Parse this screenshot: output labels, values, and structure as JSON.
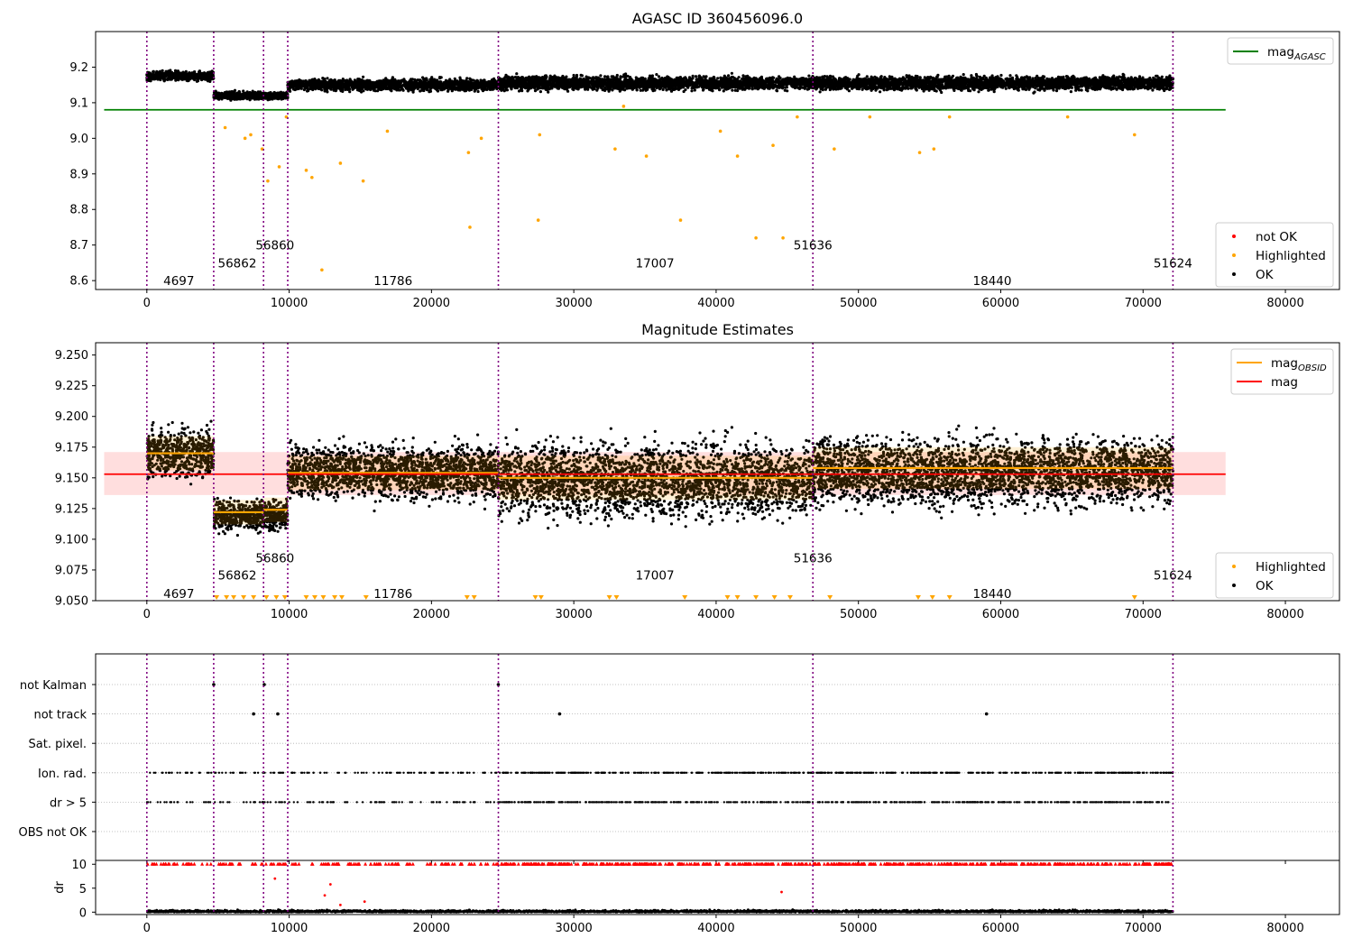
{
  "chart_data": [
    {
      "type": "scatter",
      "title": "AGASC ID 360456096.0",
      "xlabel": "",
      "ylabel": "",
      "xlim": [
        -3600,
        83800
      ],
      "ylim": [
        8.575,
        9.3
      ],
      "xticks": [
        0,
        10000,
        20000,
        30000,
        40000,
        50000,
        60000,
        70000,
        80000
      ],
      "yticks": [
        8.6,
        8.7,
        8.8,
        8.9,
        9.0,
        9.1,
        9.2
      ],
      "ytick_labels": [
        "8.6",
        "8.7",
        "8.8",
        "8.9",
        "9.0",
        "9.1",
        "9.2"
      ],
      "obs_boundaries": [
        0,
        4697,
        8200,
        9900,
        24700,
        46800,
        72100
      ],
      "obs_labels": [
        {
          "text": "4697",
          "x": 2250,
          "y": 8.6
        },
        {
          "text": "56862",
          "x": 6350,
          "y": 8.65
        },
        {
          "text": "56860",
          "x": 9000,
          "y": 8.7
        },
        {
          "text": "11786",
          "x": 17300,
          "y": 8.6
        },
        {
          "text": "17007",
          "x": 35700,
          "y": 8.65
        },
        {
          "text": "51636",
          "x": 46800,
          "y": 8.7
        },
        {
          "text": "18440",
          "x": 59400,
          "y": 8.6
        },
        {
          "text": "51624",
          "x": 72100,
          "y": 8.65
        }
      ],
      "segments": [
        {
          "x0": 0,
          "x1": 4697,
          "center": 9.175,
          "spread": 0.012
        },
        {
          "x0": 4697,
          "x1": 9900,
          "center": 9.12,
          "spread": 0.01
        },
        {
          "x0": 9900,
          "x1": 24700,
          "center": 9.15,
          "spread": 0.015
        },
        {
          "x0": 24700,
          "x1": 46800,
          "center": 9.155,
          "spread": 0.018
        },
        {
          "x0": 46800,
          "x1": 72100,
          "center": 9.155,
          "spread": 0.018
        }
      ],
      "outliers": [
        {
          "x": 5500,
          "y": 9.03
        },
        {
          "x": 6900,
          "y": 9.0
        },
        {
          "x": 7300,
          "y": 9.01
        },
        {
          "x": 8100,
          "y": 8.97
        },
        {
          "x": 8500,
          "y": 8.88
        },
        {
          "x": 9300,
          "y": 8.92
        },
        {
          "x": 9800,
          "y": 9.06
        },
        {
          "x": 11200,
          "y": 8.91
        },
        {
          "x": 11600,
          "y": 8.89
        },
        {
          "x": 12300,
          "y": 8.63
        },
        {
          "x": 13600,
          "y": 8.93
        },
        {
          "x": 15200,
          "y": 8.88
        },
        {
          "x": 16900,
          "y": 9.02
        },
        {
          "x": 22600,
          "y": 8.96
        },
        {
          "x": 22700,
          "y": 8.75
        },
        {
          "x": 23500,
          "y": 9.0
        },
        {
          "x": 27500,
          "y": 8.77
        },
        {
          "x": 27600,
          "y": 9.01
        },
        {
          "x": 32900,
          "y": 8.97
        },
        {
          "x": 35100,
          "y": 8.95
        },
        {
          "x": 37500,
          "y": 8.77
        },
        {
          "x": 40300,
          "y": 9.02
        },
        {
          "x": 41500,
          "y": 8.95
        },
        {
          "x": 42800,
          "y": 8.72
        },
        {
          "x": 44000,
          "y": 8.98
        },
        {
          "x": 44700,
          "y": 8.72
        },
        {
          "x": 45700,
          "y": 9.06
        },
        {
          "x": 48300,
          "y": 8.97
        },
        {
          "x": 54300,
          "y": 8.96
        },
        {
          "x": 55300,
          "y": 8.97
        },
        {
          "x": 56400,
          "y": 9.06
        },
        {
          "x": 64700,
          "y": 9.06
        },
        {
          "x": 69400,
          "y": 9.01
        },
        {
          "x": 50800,
          "y": 9.06
        },
        {
          "x": 33500,
          "y": 9.09
        }
      ],
      "reference_lines": [
        {
          "name": "mag_AGASC",
          "y": 9.08,
          "color": "#008000",
          "x0": -3000,
          "x1": 75800
        }
      ],
      "legends": [
        {
          "placement": "top-right",
          "entries": [
            {
              "label": "mag",
              "sub": "AGASC",
              "kind": "line",
              "color": "#008000"
            }
          ]
        },
        {
          "placement": "bottom-right",
          "entries": [
            {
              "label": "not OK",
              "kind": "dot",
              "color": "#ff0000"
            },
            {
              "label": "Highlighted",
              "kind": "dot",
              "color": "#ffa500"
            },
            {
              "label": "OK",
              "kind": "dot",
              "color": "#000000"
            }
          ]
        }
      ]
    },
    {
      "type": "scatter",
      "title": "Magnitude Estimates",
      "xlabel": "",
      "ylabel": "",
      "xlim": [
        -3600,
        83800
      ],
      "ylim": [
        9.05,
        9.26
      ],
      "xticks": [
        0,
        10000,
        20000,
        30000,
        40000,
        50000,
        60000,
        70000,
        80000
      ],
      "yticks": [
        9.05,
        9.075,
        9.1,
        9.125,
        9.15,
        9.175,
        9.2,
        9.225,
        9.25
      ],
      "ytick_labels": [
        "9.050",
        "9.075",
        "9.100",
        "9.125",
        "9.150",
        "9.175",
        "9.200",
        "9.225",
        "9.250"
      ],
      "obs_boundaries": [
        0,
        4697,
        8200,
        9900,
        24700,
        46800,
        72100
      ],
      "obs_labels": [
        {
          "text": "4697",
          "x": 2250,
          "y": 9.056
        },
        {
          "text": "56862",
          "x": 6350,
          "y": 9.071
        },
        {
          "text": "56860",
          "x": 9000,
          "y": 9.085
        },
        {
          "text": "11786",
          "x": 17300,
          "y": 9.056
        },
        {
          "text": "17007",
          "x": 35700,
          "y": 9.071
        },
        {
          "text": "51636",
          "x": 46800,
          "y": 9.085
        },
        {
          "text": "18440",
          "x": 59400,
          "y": 9.056
        },
        {
          "text": "51624",
          "x": 72100,
          "y": 9.071
        }
      ],
      "mag_band": {
        "y0": 9.136,
        "y1": 9.171,
        "x0": -3000,
        "x1": 75800
      },
      "mag_line": {
        "name": "mag",
        "y": 9.153,
        "color": "#ff0000"
      },
      "obsid_mags": [
        {
          "x0": 0,
          "x1": 4697,
          "mag": 9.17,
          "center": 9.17,
          "spread": 0.018,
          "std": 0.014
        },
        {
          "x0": 4697,
          "x1": 8200,
          "mag": 9.122,
          "center": 9.12,
          "spread": 0.012,
          "std": 0.01
        },
        {
          "x0": 8200,
          "x1": 9900,
          "mag": 9.124,
          "center": 9.12,
          "spread": 0.012,
          "std": 0.01
        },
        {
          "x0": 9900,
          "x1": 24700,
          "mag": 9.154,
          "center": 9.155,
          "spread": 0.02,
          "std": 0.014
        },
        {
          "x0": 24700,
          "x1": 46800,
          "mag": 9.15,
          "center": 9.148,
          "spread": 0.028,
          "std": 0.018
        },
        {
          "x0": 46800,
          "x1": 72100,
          "mag": 9.158,
          "center": 9.155,
          "spread": 0.026,
          "std": 0.017
        }
      ],
      "low_markers": [
        4900,
        5600,
        6100,
        6800,
        7500,
        8400,
        9100,
        9700,
        11200,
        11800,
        12400,
        13200,
        13700,
        15400,
        22500,
        23000,
        27300,
        27700,
        32500,
        33000,
        37800,
        40800,
        41500,
        42800,
        44100,
        45200,
        48000,
        54200,
        55200,
        56400,
        69400
      ],
      "legends": [
        {
          "placement": "top-right",
          "entries": [
            {
              "label": "mag",
              "sub": "OBSID",
              "kind": "line",
              "color": "#ffa500"
            },
            {
              "label": "mag",
              "sub": "",
              "kind": "line",
              "color": "#ff0000"
            }
          ]
        },
        {
          "placement": "bottom-right",
          "entries": [
            {
              "label": "Highlighted",
              "kind": "dot",
              "color": "#ffa500"
            },
            {
              "label": "OK",
              "kind": "dot",
              "color": "#000000"
            }
          ]
        }
      ]
    },
    {
      "type": "scatter",
      "title": "",
      "xlabel": "",
      "ylabel": "",
      "xlim": [
        -3600,
        83800
      ],
      "xticks": [
        0,
        10000,
        20000,
        30000,
        40000,
        50000,
        60000,
        70000,
        80000
      ],
      "flag_categories": [
        "not Kalman",
        "not track",
        "Sat. pixel.",
        "Ion. rad.",
        "dr > 5",
        "OBS not OK"
      ],
      "obs_boundaries": [
        0,
        4697,
        8200,
        9900,
        24700,
        46800,
        72100
      ],
      "flag_points": {
        "not Kalman": [
          4700,
          8250,
          24700
        ],
        "not track": [
          7500,
          9200,
          29000,
          59000
        ],
        "Sat. pixel.": [],
        "Ion. rad.": "frequent",
        "dr > 5": "frequent",
        "OBS not OK": []
      }
    },
    {
      "type": "scatter",
      "title": "",
      "xlabel": "",
      "ylabel": "dr",
      "xlim": [
        -3600,
        83800
      ],
      "ylim": [
        -0.5,
        10.8
      ],
      "yticks": [
        0,
        5,
        10
      ],
      "ytick_labels": [
        "0",
        "5",
        "10"
      ],
      "xticks": [
        0,
        10000,
        20000,
        30000,
        40000,
        50000,
        60000,
        70000,
        80000
      ],
      "obs_boundaries": [
        0,
        4697,
        8200,
        9900,
        24700,
        46800,
        72100
      ],
      "capped_value": 10,
      "dr_outliers": [
        {
          "x": 9000,
          "y": 7
        },
        {
          "x": 12500,
          "y": 3.5
        },
        {
          "x": 12900,
          "y": 5.8
        },
        {
          "x": 13600,
          "y": 1.5
        },
        {
          "x": 44600,
          "y": 4.2
        },
        {
          "x": 15300,
          "y": 2.2
        }
      ]
    }
  ]
}
